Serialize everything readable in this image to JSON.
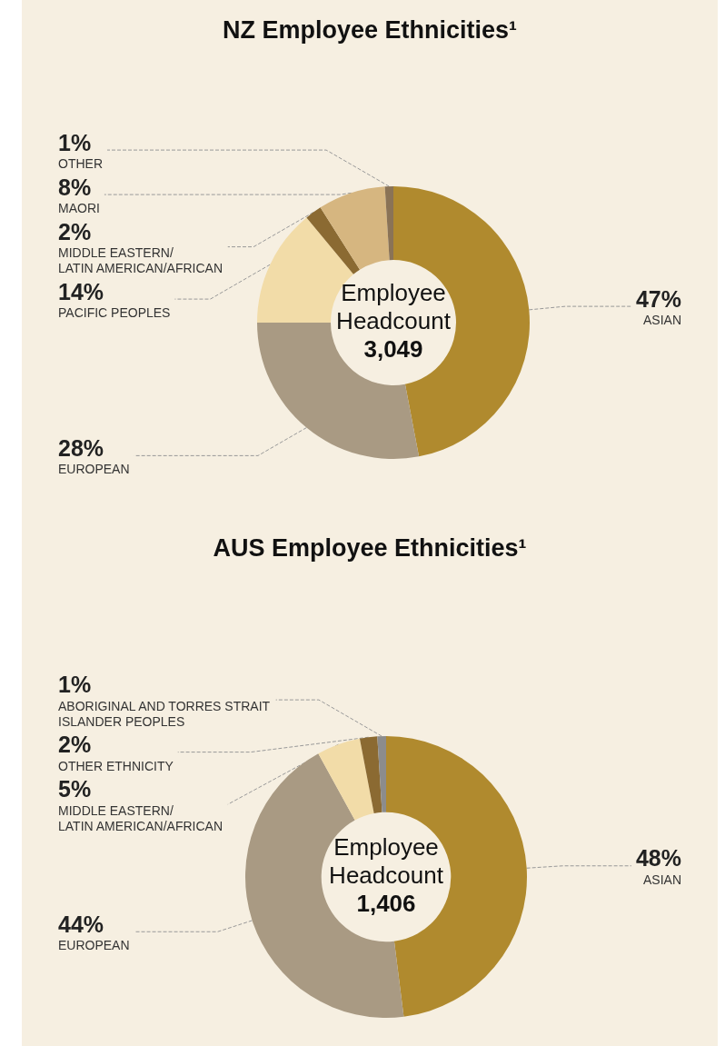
{
  "chart_data": [
    {
      "type": "donut",
      "title": "NZ Employee Ethnicities¹",
      "categories": [
        "ASIAN",
        "EUROPEAN",
        "PACIFIC PEOPLES",
        "MIDDLE EASTERN/ LATIN AMERICAN/AFRICAN",
        "MAORI",
        "OTHER"
      ],
      "values": [
        47,
        28,
        14,
        2,
        8,
        1
      ],
      "value_labels": [
        "47%",
        "28%",
        "14%",
        "2%",
        "8%",
        "1%"
      ],
      "colors": [
        "#b08a2e",
        "#a99a83",
        "#f2dca8",
        "#8b6a32",
        "#d6b680",
        "#8a7356"
      ],
      "legend": false,
      "annotations": [
        "Employee Headcount",
        "3,049"
      ]
    },
    {
      "type": "donut",
      "title": "AUS Employee Ethnicities¹",
      "categories": [
        "ASIAN",
        "EUROPEAN",
        "MIDDLE EASTERN/ LATIN AMERICAN/AFRICAN",
        "OTHER ETHNICITY",
        "ABORIGINAL AND TORRES STRAIT ISLANDER PEOPLES"
      ],
      "values": [
        48,
        44,
        5,
        2,
        1
      ],
      "value_labels": [
        "48%",
        "44%",
        "5%",
        "2%",
        "1%"
      ],
      "colors": [
        "#b08a2e",
        "#a99a83",
        "#f2dca8",
        "#8b6a32",
        "#8c8c8c"
      ],
      "legend": false,
      "annotations": [
        "Employee Headcount",
        "1,406"
      ]
    }
  ]
}
